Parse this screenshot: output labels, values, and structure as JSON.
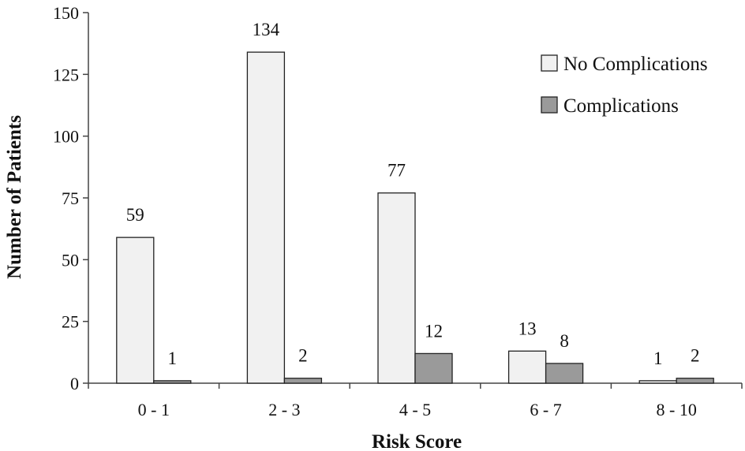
{
  "chart_data": {
    "type": "bar",
    "title": "",
    "xlabel": "Risk Score",
    "ylabel": "Number of Patients",
    "categories": [
      "0 - 1",
      "2 - 3",
      "4 - 5",
      "6 - 7",
      "8 - 10"
    ],
    "ylim": [
      0,
      150
    ],
    "yticks": [
      0,
      25,
      50,
      75,
      100,
      125,
      150
    ],
    "grid": false,
    "legend_position": "top-right",
    "series": [
      {
        "name": "No Complications",
        "values": [
          59,
          134,
          77,
          13,
          1
        ],
        "color": "#f1f1f1"
      },
      {
        "name": "Complications",
        "values": [
          1,
          2,
          12,
          8,
          2
        ],
        "color": "#9a9a9a"
      }
    ]
  }
}
